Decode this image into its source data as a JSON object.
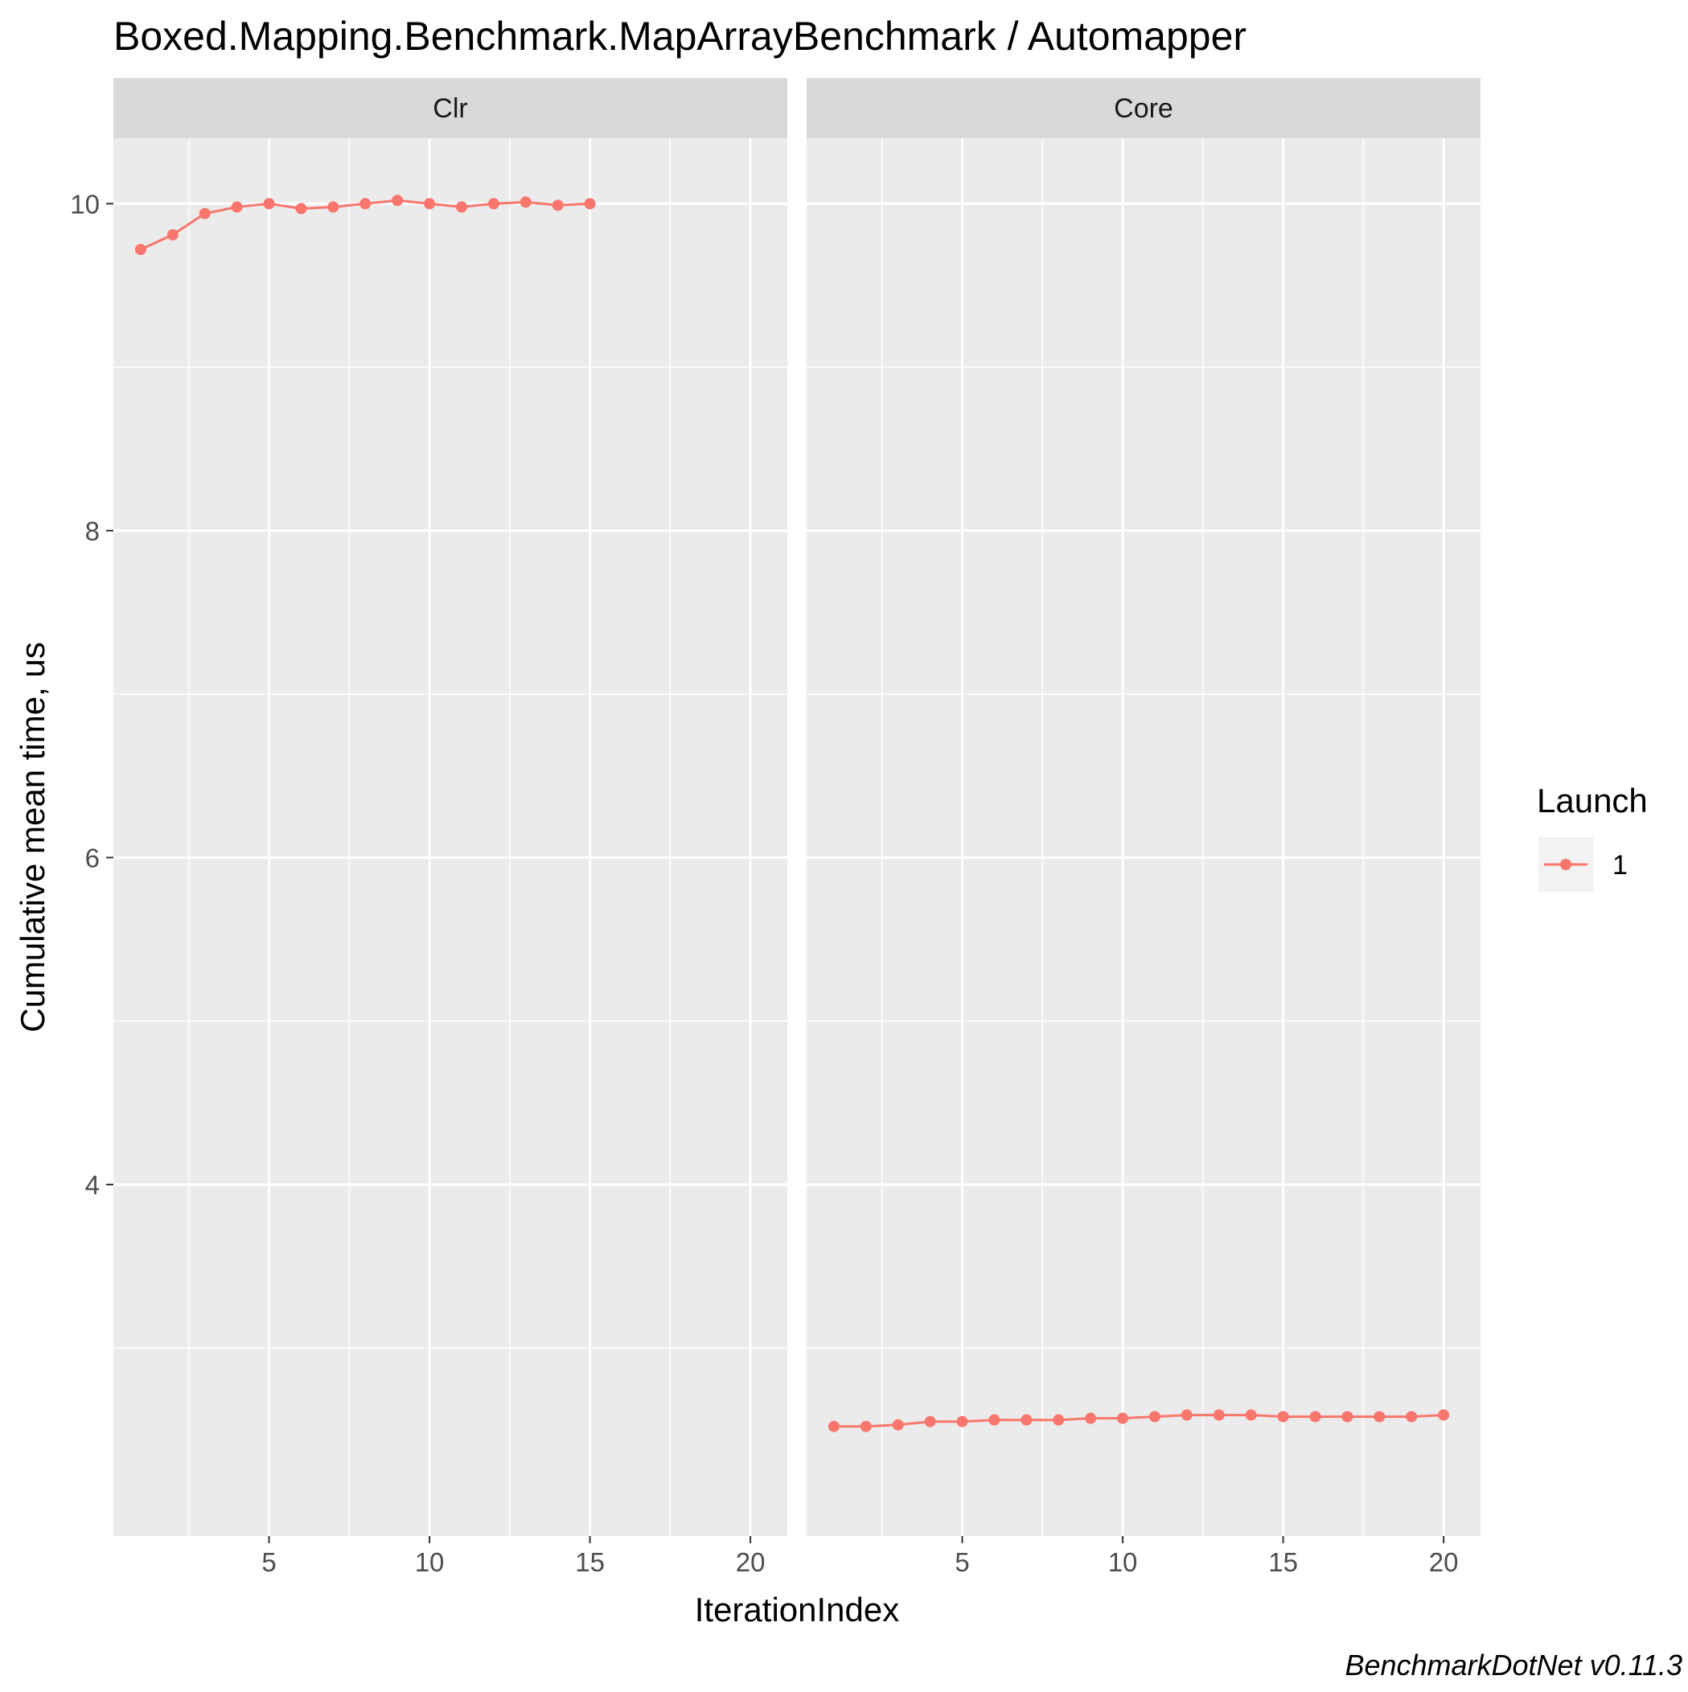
{
  "chart_data": {
    "type": "line",
    "title": "Boxed.Mapping.Benchmark.MapArrayBenchmark / Automapper",
    "xlabel": "IterationIndex",
    "ylabel": "Cumulative mean time, us",
    "caption": "BenchmarkDotNet v0.11.3",
    "xlim": [
      0.15,
      21.15
    ],
    "ylim": [
      1.85,
      10.4
    ],
    "x_ticks": [
      5,
      10,
      15,
      20
    ],
    "x_tick_labels": [
      "5",
      "10",
      "15",
      "20"
    ],
    "y_ticks": [
      4,
      6,
      8,
      10
    ],
    "y_tick_labels": [
      "4",
      "6",
      "8",
      "10"
    ],
    "grid": true,
    "legend": {
      "title": "Launch",
      "position": "right",
      "entries": [
        {
          "label": "1",
          "color": "#F8766D"
        }
      ]
    },
    "series_color": "#F8766D",
    "panels": [
      {
        "name": "Clr",
        "series": [
          {
            "name": "1",
            "x": [
              1,
              2,
              3,
              4,
              5,
              6,
              7,
              8,
              9,
              10,
              11,
              12,
              13,
              14,
              15
            ],
            "y": [
              9.72,
              9.81,
              9.94,
              9.98,
              10.0,
              9.97,
              9.98,
              10.0,
              10.02,
              10.0,
              9.98,
              10.0,
              10.01,
              9.99,
              10.0
            ]
          }
        ]
      },
      {
        "name": "Core",
        "series": [
          {
            "name": "1",
            "x": [
              1,
              2,
              3,
              4,
              5,
              6,
              7,
              8,
              9,
              10,
              11,
              12,
              13,
              14,
              15,
              16,
              17,
              18,
              19,
              20
            ],
            "y": [
              2.52,
              2.52,
              2.53,
              2.55,
              2.55,
              2.56,
              2.56,
              2.56,
              2.57,
              2.57,
              2.58,
              2.59,
              2.59,
              2.59,
              2.58,
              2.58,
              2.58,
              2.58,
              2.58,
              2.59
            ]
          }
        ]
      }
    ]
  }
}
